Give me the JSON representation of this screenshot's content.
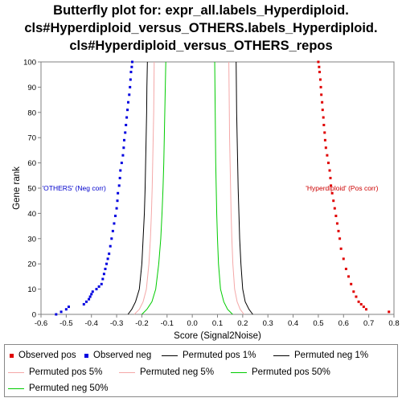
{
  "title": {
    "line1": "Butterfly plot for: expr_all.labels_Hyperdiploid.",
    "line2": "cls#Hyperdiploid_versus_OTHERS.labels_Hyperdiploid.",
    "line3": "cls#Hyperdiploid_versus_OTHERS_repos"
  },
  "colors": {
    "observed_pos": "#e00000",
    "observed_neg": "#0000e0",
    "perm_1": "#000000",
    "perm_5": "#f4a8a8",
    "perm_50": "#00cc00",
    "neg_label": "#0000cc",
    "pos_label": "#cc0000"
  },
  "legend": [
    {
      "label": "Observed pos",
      "symbol": "dot",
      "color": "#e00000"
    },
    {
      "label": "Observed neg",
      "symbol": "dot",
      "color": "#0000e0"
    },
    {
      "label": "Permuted pos 1%",
      "symbol": "line",
      "color": "#000000"
    },
    {
      "label": "Permuted neg 1%",
      "symbol": "line",
      "color": "#000000"
    },
    {
      "label": "Permuted pos 5%",
      "symbol": "line",
      "color": "#f4a8a8"
    },
    {
      "label": "Permuted neg 5%",
      "symbol": "line",
      "color": "#f4a8a8"
    },
    {
      "label": "Permuted pos 50%",
      "symbol": "line",
      "color": "#00cc00"
    },
    {
      "label": "Permuted neg 50%",
      "symbol": "line",
      "color": "#00cc00"
    }
  ],
  "chart_data": {
    "type": "scatter",
    "xlabel": "Score (Signal2Noise)",
    "ylabel": "Gene rank",
    "xlim": [
      -0.6,
      0.8
    ],
    "ylim": [
      0,
      100
    ],
    "xticks": [
      -0.6,
      -0.5,
      -0.4,
      -0.3,
      -0.2,
      -0.1,
      0.0,
      0.1,
      0.2,
      0.3,
      0.4,
      0.5,
      0.6,
      0.7,
      0.8
    ],
    "xtick_labels": [
      "-0.6",
      "-0.5",
      "-0.4",
      "-0.3",
      "-0.2",
      "-0.1",
      "0.0",
      "0.1",
      "0.2",
      "0.3",
      "0.4",
      "0.5",
      "0.6",
      "0.7",
      "0.8"
    ],
    "yticks": [
      0,
      10,
      20,
      30,
      40,
      50,
      60,
      70,
      80,
      90,
      100
    ],
    "ytick_labels": [
      "0",
      "10",
      "20",
      "30",
      "40",
      "50",
      "60",
      "70",
      "80",
      "90",
      "100"
    ],
    "grid": false,
    "annotations": [
      {
        "text": "'OTHERS' (Neg corr)",
        "x": -0.595,
        "y": 50,
        "color": "#0000cc"
      },
      {
        "text": "'Hyperdiploid' (Pos corr)",
        "x": 0.45,
        "y": 50,
        "color": "#cc0000"
      }
    ],
    "observed_pos": {
      "name": "Observed pos",
      "points": [
        [
          0.78,
          1
        ],
        [
          0.69,
          2
        ],
        [
          0.68,
          3
        ],
        [
          0.67,
          4
        ],
        [
          0.66,
          5
        ],
        [
          0.65,
          7
        ],
        [
          0.64,
          9
        ],
        [
          0.63,
          12
        ],
        [
          0.62,
          15
        ],
        [
          0.61,
          18
        ],
        [
          0.6,
          22
        ],
        [
          0.59,
          26
        ],
        [
          0.585,
          30
        ],
        [
          0.58,
          33
        ],
        [
          0.575,
          36
        ],
        [
          0.57,
          39
        ],
        [
          0.565,
          42
        ],
        [
          0.56,
          45
        ],
        [
          0.555,
          48
        ],
        [
          0.55,
          51
        ],
        [
          0.548,
          54
        ],
        [
          0.545,
          57
        ],
        [
          0.54,
          60
        ],
        [
          0.535,
          63
        ],
        [
          0.53,
          66
        ],
        [
          0.527,
          69
        ],
        [
          0.525,
          72
        ],
        [
          0.522,
          75
        ],
        [
          0.52,
          78
        ],
        [
          0.517,
          81
        ],
        [
          0.515,
          84
        ],
        [
          0.512,
          87
        ],
        [
          0.51,
          90
        ],
        [
          0.508,
          93
        ],
        [
          0.505,
          96
        ],
        [
          0.503,
          98
        ],
        [
          0.5,
          100
        ]
      ]
    },
    "observed_neg": {
      "name": "Observed neg",
      "points": [
        [
          -0.54,
          0
        ],
        [
          -0.52,
          1
        ],
        [
          -0.5,
          2
        ],
        [
          -0.49,
          3
        ],
        [
          -0.43,
          4
        ],
        [
          -0.42,
          5
        ],
        [
          -0.41,
          6
        ],
        [
          -0.405,
          7
        ],
        [
          -0.4,
          8
        ],
        [
          -0.395,
          9
        ],
        [
          -0.38,
          10
        ],
        [
          -0.37,
          11
        ],
        [
          -0.36,
          12
        ],
        [
          -0.355,
          14
        ],
        [
          -0.35,
          16
        ],
        [
          -0.345,
          18
        ],
        [
          -0.34,
          20
        ],
        [
          -0.335,
          22
        ],
        [
          -0.33,
          24
        ],
        [
          -0.325,
          27
        ],
        [
          -0.32,
          30
        ],
        [
          -0.315,
          33
        ],
        [
          -0.31,
          36
        ],
        [
          -0.305,
          39
        ],
        [
          -0.3,
          42
        ],
        [
          -0.297,
          45
        ],
        [
          -0.295,
          48
        ],
        [
          -0.29,
          51
        ],
        [
          -0.287,
          54
        ],
        [
          -0.285,
          57
        ],
        [
          -0.28,
          60
        ],
        [
          -0.275,
          63
        ],
        [
          -0.272,
          66
        ],
        [
          -0.27,
          69
        ],
        [
          -0.266,
          72
        ],
        [
          -0.263,
          75
        ],
        [
          -0.26,
          78
        ],
        [
          -0.257,
          81
        ],
        [
          -0.254,
          84
        ],
        [
          -0.25,
          87
        ],
        [
          -0.247,
          90
        ],
        [
          -0.245,
          93
        ],
        [
          -0.243,
          96
        ],
        [
          -0.24,
          98
        ],
        [
          -0.238,
          100
        ]
      ]
    },
    "permuted_pos_1": {
      "name": "Permuted pos 1%",
      "points": [
        [
          0.24,
          0
        ],
        [
          0.225,
          2
        ],
        [
          0.21,
          5
        ],
        [
          0.2,
          10
        ],
        [
          0.193,
          20
        ],
        [
          0.188,
          30
        ],
        [
          0.185,
          40
        ],
        [
          0.182,
          50
        ],
        [
          0.18,
          60
        ],
        [
          0.178,
          70
        ],
        [
          0.176,
          80
        ],
        [
          0.175,
          90
        ],
        [
          0.174,
          100
        ]
      ]
    },
    "permuted_neg_1": {
      "name": "Permuted neg 1%",
      "points": [
        [
          -0.255,
          0
        ],
        [
          -0.24,
          2
        ],
        [
          -0.225,
          5
        ],
        [
          -0.21,
          10
        ],
        [
          -0.2,
          20
        ],
        [
          -0.195,
          30
        ],
        [
          -0.19,
          40
        ],
        [
          -0.187,
          50
        ],
        [
          -0.185,
          60
        ],
        [
          -0.183,
          70
        ],
        [
          -0.181,
          80
        ],
        [
          -0.18,
          90
        ],
        [
          -0.178,
          100
        ]
      ]
    },
    "permuted_pos_5": {
      "name": "Permuted pos 5%",
      "points": [
        [
          0.205,
          0
        ],
        [
          0.19,
          2
        ],
        [
          0.178,
          5
        ],
        [
          0.168,
          10
        ],
        [
          0.161,
          20
        ],
        [
          0.157,
          30
        ],
        [
          0.154,
          40
        ],
        [
          0.152,
          50
        ],
        [
          0.15,
          60
        ],
        [
          0.148,
          70
        ],
        [
          0.147,
          80
        ],
        [
          0.146,
          90
        ],
        [
          0.145,
          100
        ]
      ]
    },
    "permuted_neg_5": {
      "name": "Permuted neg 5%",
      "points": [
        [
          -0.23,
          0
        ],
        [
          -0.21,
          2
        ],
        [
          -0.195,
          5
        ],
        [
          -0.182,
          10
        ],
        [
          -0.172,
          20
        ],
        [
          -0.166,
          30
        ],
        [
          -0.162,
          40
        ],
        [
          -0.159,
          50
        ],
        [
          -0.157,
          60
        ],
        [
          -0.155,
          70
        ],
        [
          -0.153,
          80
        ],
        [
          -0.152,
          90
        ],
        [
          -0.151,
          100
        ]
      ]
    },
    "permuted_pos_50": {
      "name": "Permuted pos 50%",
      "points": [
        [
          0.16,
          0
        ],
        [
          0.14,
          2
        ],
        [
          0.125,
          5
        ],
        [
          0.112,
          10
        ],
        [
          0.104,
          20
        ],
        [
          0.1,
          30
        ],
        [
          0.097,
          40
        ],
        [
          0.095,
          50
        ],
        [
          0.093,
          60
        ],
        [
          0.092,
          70
        ],
        [
          0.091,
          80
        ],
        [
          0.09,
          90
        ],
        [
          0.089,
          100
        ]
      ]
    },
    "permuted_neg_50": {
      "name": "Permuted neg 50%",
      "points": [
        [
          -0.2,
          0
        ],
        [
          -0.18,
          2
        ],
        [
          -0.16,
          5
        ],
        [
          -0.145,
          10
        ],
        [
          -0.133,
          20
        ],
        [
          -0.125,
          30
        ],
        [
          -0.12,
          40
        ],
        [
          -0.116,
          50
        ],
        [
          -0.113,
          60
        ],
        [
          -0.111,
          70
        ],
        [
          -0.109,
          80
        ],
        [
          -0.107,
          90
        ],
        [
          -0.105,
          100
        ]
      ]
    }
  }
}
